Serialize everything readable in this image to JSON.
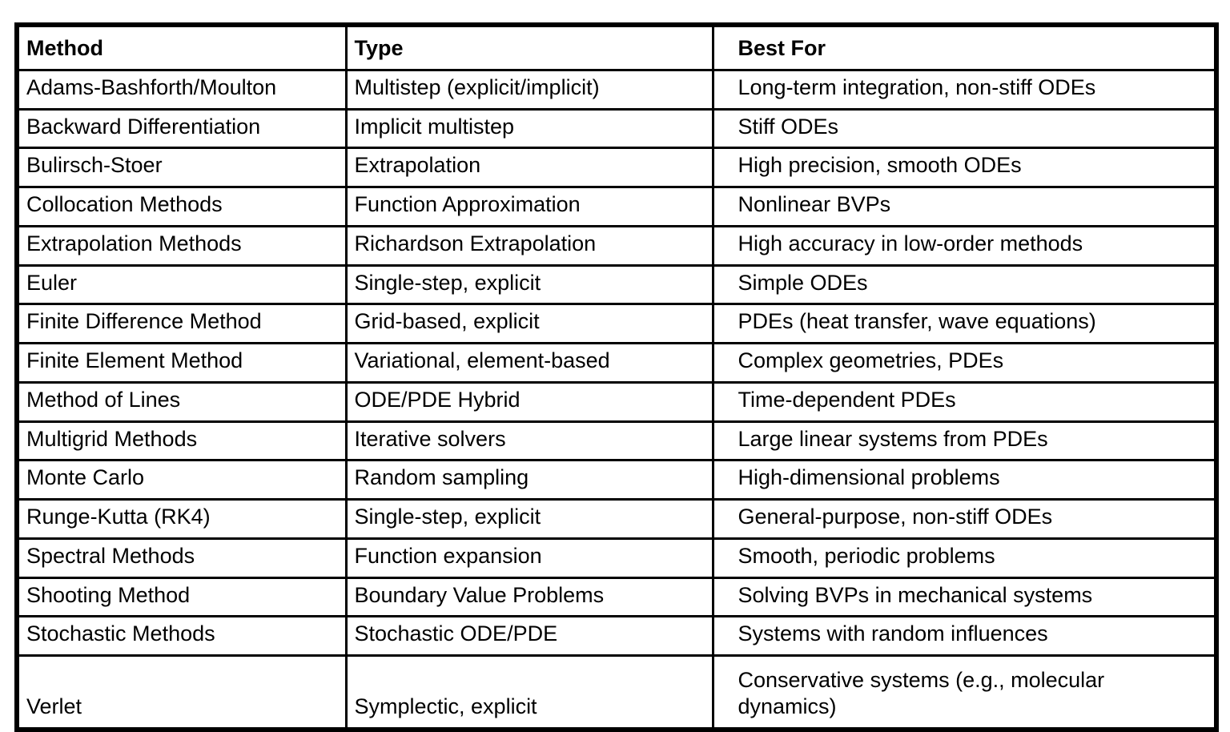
{
  "page": {
    "background_color": "#ffffff",
    "text_color": "#000000",
    "border_color": "#000000"
  },
  "table": {
    "columns": [
      "Method",
      "Type",
      "Best For"
    ],
    "rows": [
      [
        "Adams-Bashforth/Moulton",
        "Multistep (explicit/implicit)",
        "Long-term integration, non-stiff ODEs"
      ],
      [
        "Backward Differentiation",
        "Implicit multistep",
        "Stiff ODEs"
      ],
      [
        "Bulirsch-Stoer",
        "Extrapolation",
        "High precision, smooth ODEs"
      ],
      [
        "Collocation Methods",
        "Function Approximation",
        "Nonlinear BVPs"
      ],
      [
        "Extrapolation Methods",
        "Richardson Extrapolation",
        "High accuracy in low-order methods"
      ],
      [
        "Euler",
        "Single-step, explicit",
        "Simple ODEs"
      ],
      [
        "Finite Difference Method",
        "Grid-based, explicit",
        "PDEs (heat transfer, wave equations)"
      ],
      [
        "Finite Element Method",
        "Variational, element-based",
        "Complex geometries, PDEs"
      ],
      [
        "Method of Lines",
        "ODE/PDE Hybrid",
        "Time-dependent PDEs"
      ],
      [
        "Multigrid Methods",
        "Iterative solvers",
        "Large linear systems from PDEs"
      ],
      [
        "Monte Carlo",
        "Random sampling",
        "High-dimensional problems"
      ],
      [
        "Runge-Kutta (RK4)",
        "Single-step, explicit",
        "General-purpose, non-stiff ODEs"
      ],
      [
        "Spectral Methods",
        "Function expansion",
        "Smooth, periodic problems"
      ],
      [
        "Shooting Method",
        "Boundary Value Problems",
        "Solving BVPs in mechanical systems"
      ],
      [
        "Stochastic Methods",
        "Stochastic ODE/PDE",
        "Systems with random influences"
      ],
      [
        "Verlet",
        "Symplectic, explicit",
        "Conservative systems (e.g., molecular dynamics)"
      ]
    ]
  }
}
